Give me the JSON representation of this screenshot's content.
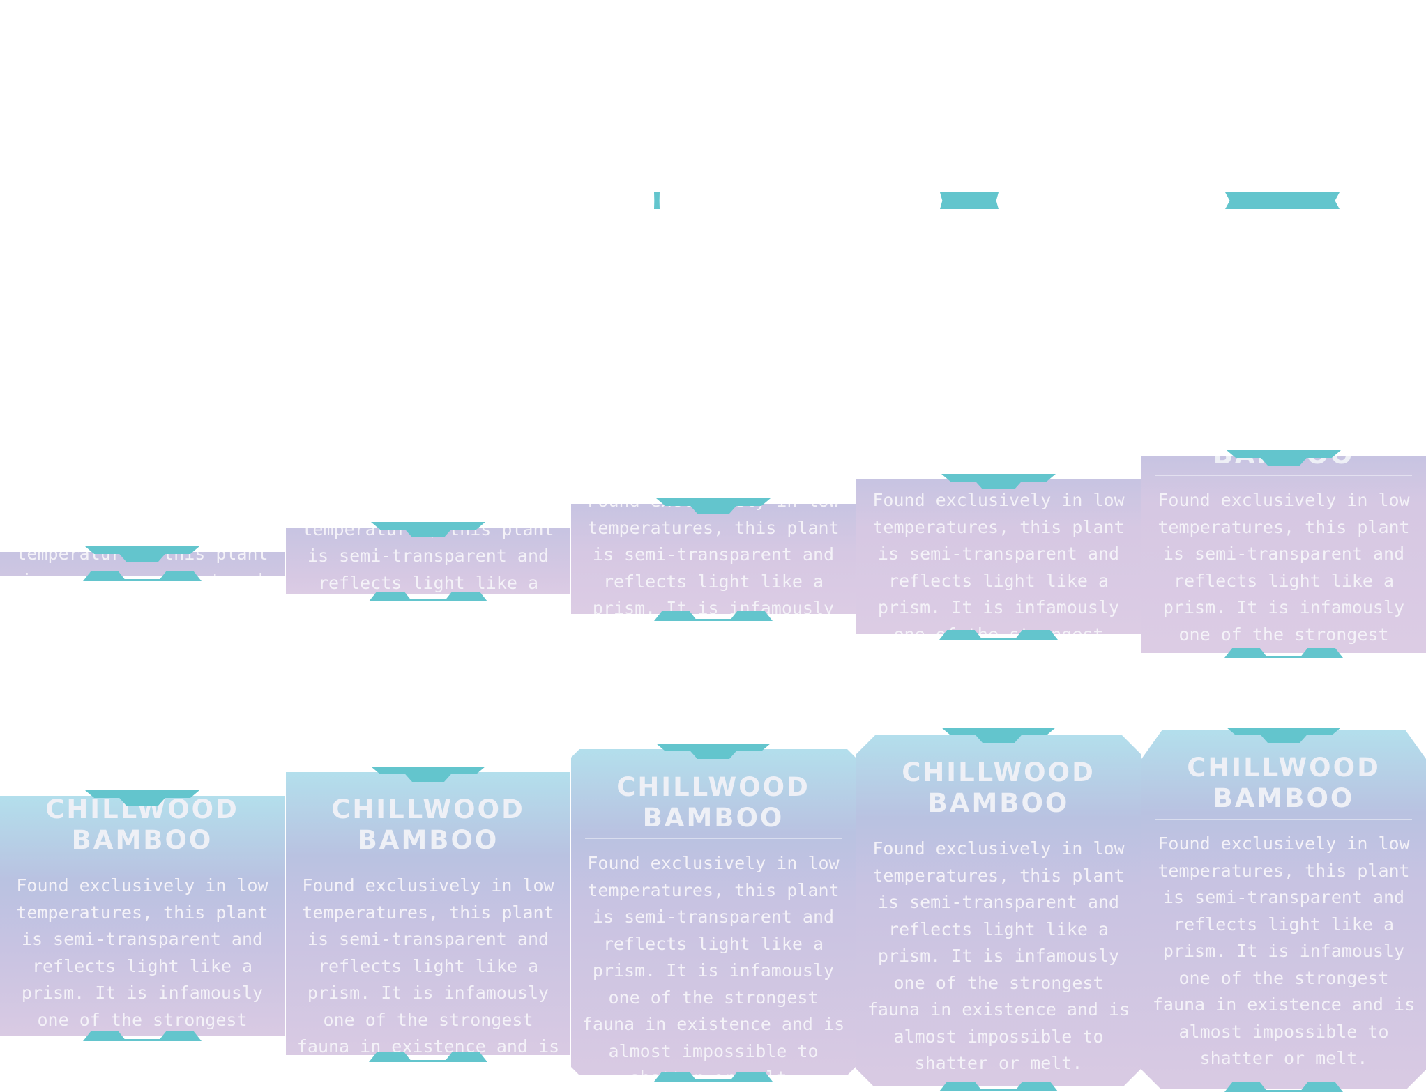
{
  "colors": {
    "accent": "#63c5cd",
    "card_top": "#b3dfec",
    "card_mid": "#b9c2e1",
    "card_bottom": "#d9cae3",
    "text": "#f4f2f8"
  },
  "card": {
    "title_line1": "CHILLWOOD",
    "title_line2": "BAMBOO",
    "body": "Found exclusively in low temperatures, this plant is semi-transparent and reflects light like a prism. It is infamously one of the strongest fauna in existence and is almost impossible to shatter or melt."
  },
  "sequences": [
    {
      "name": "card-sequence-top",
      "frames": 5
    },
    {
      "name": "card-sequence-bottom",
      "frames": 5
    }
  ]
}
